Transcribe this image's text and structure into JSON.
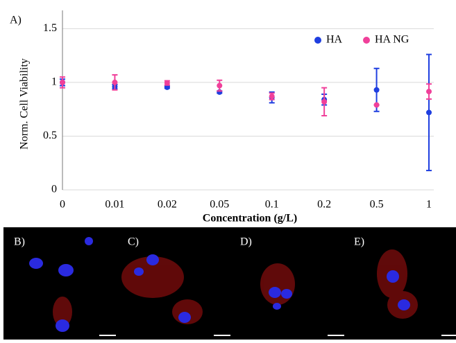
{
  "chart_data": {
    "type": "scatter",
    "panel_label": "A)",
    "x_label": "Concentration (g/L)",
    "y_label": "Norm. Cell Viability",
    "categories": [
      "0",
      "0.01",
      "0.02",
      "0.05",
      "0.1",
      "0.2",
      "0.5",
      "1"
    ],
    "series": [
      {
        "name": "HA",
        "color": "#1f3fe0",
        "values": [
          1.0,
          0.96,
          0.955,
          0.91,
          0.86,
          0.84,
          0.93,
          0.72
        ],
        "errors": [
          0.03,
          0.02,
          0.01,
          0.01,
          0.05,
          0.05,
          0.2,
          0.54
        ]
      },
      {
        "name": "HA NG",
        "color": "#f0409a",
        "values": [
          1.0,
          1.0,
          0.995,
          0.97,
          0.87,
          0.82,
          0.79,
          0.915
        ],
        "errors": [
          0.05,
          0.07,
          0.02,
          0.05,
          0.03,
          0.13,
          0,
          0.07
        ]
      }
    ],
    "ylim": [
      0,
      1.67
    ],
    "yticks": [
      0,
      0.5,
      1,
      1.5
    ],
    "grid": true,
    "legend": "top-right"
  },
  "image_panels": [
    "B)",
    "C)",
    "D)",
    "E)"
  ]
}
